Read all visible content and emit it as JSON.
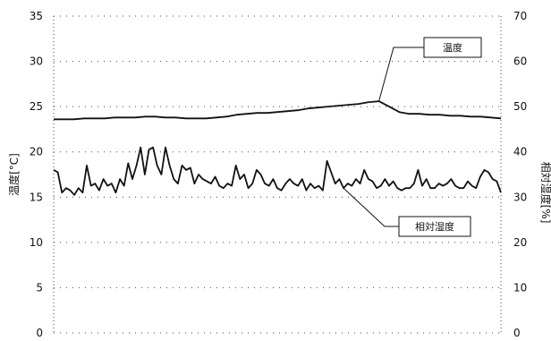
{
  "chart_data": {
    "type": "line",
    "title": "",
    "y_left": {
      "label": "温度[°C]",
      "range": [
        0,
        35
      ],
      "ticks": [
        "0",
        "5",
        "10",
        "15",
        "20",
        "25",
        "30",
        "35"
      ]
    },
    "y_right": {
      "label": "相対湿度[%]",
      "range": [
        0,
        70
      ],
      "ticks": [
        "0",
        "10",
        "20",
        "30",
        "40",
        "50",
        "60",
        "70"
      ]
    },
    "grid": true,
    "legend": "leader-line callouts",
    "series": [
      {
        "name": "温度",
        "axis": "left",
        "color": "#111111",
        "values": [
          23.6,
          23.6,
          23.6,
          23.7,
          23.7,
          23.7,
          23.8,
          23.8,
          23.8,
          23.9,
          23.9,
          23.8,
          23.8,
          23.7,
          23.7,
          23.7,
          23.8,
          23.9,
          24.1,
          24.2,
          24.3,
          24.3,
          24.4,
          24.5,
          24.6,
          24.8,
          24.9,
          25.0,
          25.1,
          25.2,
          25.3,
          25.5,
          25.6,
          25.0,
          24.4,
          24.2,
          24.2,
          24.1,
          24.1,
          24.0,
          24.0,
          23.9,
          23.9,
          23.8,
          23.7
        ]
      },
      {
        "name": "相対湿度",
        "axis": "right",
        "color": "#111111",
        "values": [
          36,
          35.5,
          31,
          32,
          31.5,
          30.5,
          32,
          31,
          37,
          32.5,
          33,
          31.5,
          34,
          32.5,
          33,
          31,
          34,
          32.5,
          37.5,
          34,
          37,
          41,
          35,
          40.5,
          41,
          37,
          35,
          41,
          37,
          34,
          33,
          37,
          36,
          36.5,
          33,
          35,
          34,
          33.5,
          33,
          34.5,
          32.5,
          32,
          33,
          32.5,
          37,
          34,
          35,
          32,
          33,
          36,
          35,
          33,
          32.5,
          34,
          32,
          31.5,
          33,
          34,
          33,
          32.5,
          34,
          31.5,
          33,
          32,
          32.5,
          31.5,
          38,
          35.5,
          33,
          34,
          32,
          33,
          32.5,
          34,
          33,
          36,
          34,
          33.5,
          32,
          32.5,
          34,
          32.5,
          33.5,
          32,
          31.5,
          32,
          32,
          33,
          36,
          32.5,
          34,
          32,
          32,
          33,
          32.5,
          33,
          34,
          32.5,
          32,
          32,
          33.5,
          32.5,
          32,
          34.5,
          36,
          35.5,
          34,
          33.5,
          31
        ]
      }
    ]
  }
}
